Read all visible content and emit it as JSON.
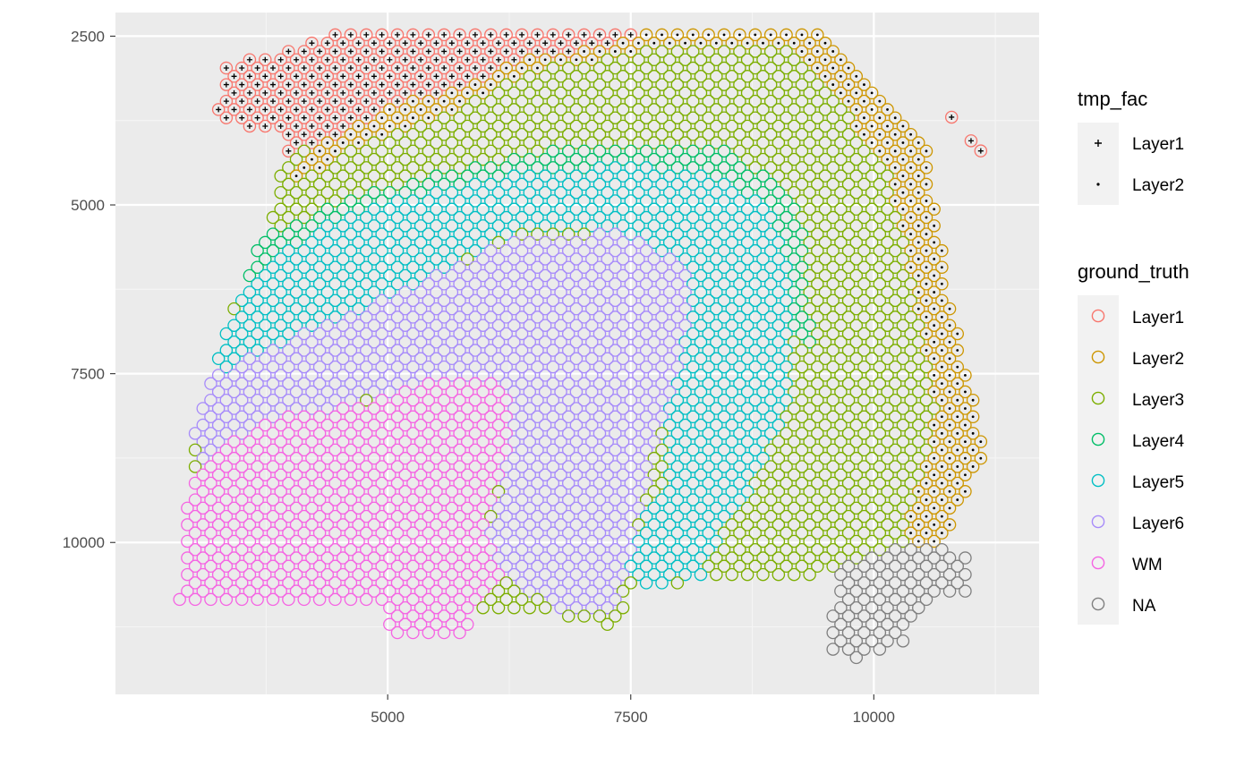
{
  "chart_data": {
    "type": "scatter",
    "title": "",
    "xlabel": "",
    "ylabel": "",
    "xlim": [
      2200,
      11700
    ],
    "ylim": [
      2150,
      12250
    ],
    "y_reversed": true,
    "grid": true,
    "legend_placement": "right",
    "x_ticks": [
      {
        "value": 5000,
        "label": "5000"
      },
      {
        "value": 7500,
        "label": "7500"
      },
      {
        "value": 10000,
        "label": "10000"
      }
    ],
    "y_ticks": [
      {
        "value": 2500,
        "label": "2500"
      },
      {
        "value": 5000,
        "label": "5000"
      },
      {
        "value": 7500,
        "label": "7500"
      },
      {
        "value": 10000,
        "label": "10000"
      }
    ],
    "spot_spacing_x": 160,
    "spot_spacing_y": 123,
    "shape_legend": {
      "title": "tmp_fac",
      "items": [
        {
          "name": "Layer1",
          "shape": "plus"
        },
        {
          "name": "Layer2",
          "shape": "dot"
        }
      ]
    },
    "color_legend": {
      "title": "ground_truth",
      "items": [
        {
          "name": "Layer1",
          "color": "#F8766D"
        },
        {
          "name": "Layer2",
          "color": "#CD9600"
        },
        {
          "name": "Layer3",
          "color": "#7CAE00"
        },
        {
          "name": "Layer4",
          "color": "#00BE67"
        },
        {
          "name": "Layer5",
          "color": "#00BFC4"
        },
        {
          "name": "Layer6",
          "color": "#A78BFA"
        },
        {
          "name": "WM",
          "color": "#F564E3"
        },
        {
          "name": "NA",
          "color": "#7F7F7F"
        }
      ]
    },
    "regions": {
      "tissue": [
        [
          2850,
          11000
        ],
        [
          2900,
          9800
        ],
        [
          3050,
          8000
        ],
        [
          3300,
          7000
        ],
        [
          3600,
          5800
        ],
        [
          3800,
          5100
        ],
        [
          3950,
          4000
        ],
        [
          3200,
          3700
        ],
        [
          3350,
          2900
        ],
        [
          4200,
          2600
        ],
        [
          4600,
          2350
        ],
        [
          9500,
          2350
        ],
        [
          10000,
          3200
        ],
        [
          10550,
          4200
        ],
        [
          10750,
          6100
        ],
        [
          10900,
          7100
        ],
        [
          11150,
          8700
        ],
        [
          10700,
          10100
        ],
        [
          10400,
          10250
        ],
        [
          9000,
          10600
        ],
        [
          8300,
          10550
        ],
        [
          7500,
          10700
        ],
        [
          7400,
          11250
        ],
        [
          6400,
          11000
        ],
        [
          5900,
          11000
        ],
        [
          5800,
          11350
        ],
        [
          5000,
          11350
        ],
        [
          4900,
          10900
        ],
        [
          2850,
          10900
        ]
      ],
      "layer1": [
        [
          3050,
          3600
        ],
        [
          3100,
          2900
        ],
        [
          4000,
          2450
        ],
        [
          4600,
          2350
        ],
        [
          7600,
          2380
        ],
        [
          7450,
          2580
        ],
        [
          6200,
          2900
        ],
        [
          5800,
          3300
        ],
        [
          5200,
          3450
        ],
        [
          4200,
          4150
        ],
        [
          3550,
          4500
        ],
        [
          3200,
          4400
        ]
      ],
      "layer2": [
        [
          3950,
          4500
        ],
        [
          4600,
          3500
        ],
        [
          5800,
          3300
        ],
        [
          6300,
          2800
        ],
        [
          7600,
          2380
        ],
        [
          9700,
          2380
        ],
        [
          10150,
          3200
        ],
        [
          10550,
          4100
        ],
        [
          10800,
          5400
        ],
        [
          11000,
          6900
        ],
        [
          11200,
          8200
        ],
        [
          11100,
          8900
        ],
        [
          10800,
          9700
        ],
        [
          10550,
          10300
        ],
        [
          10300,
          10050
        ],
        [
          10650,
          8000
        ],
        [
          10450,
          6700
        ],
        [
          10300,
          5500
        ],
        [
          10150,
          4500
        ],
        [
          9700,
          3600
        ],
        [
          9150,
          2700
        ],
        [
          7900,
          2650
        ],
        [
          6500,
          3000
        ],
        [
          5500,
          3700
        ],
        [
          4500,
          4200
        ],
        [
          4100,
          4700
        ]
      ],
      "layer4": [
        [
          3350,
          7350
        ],
        [
          3450,
          6500
        ],
        [
          3700,
          5500
        ],
        [
          4600,
          4900
        ],
        [
          5600,
          4500
        ],
        [
          6600,
          4200
        ],
        [
          7500,
          4200
        ],
        [
          8500,
          4200
        ],
        [
          9050,
          4700
        ],
        [
          9300,
          5300
        ],
        [
          9300,
          6300
        ],
        [
          9400,
          7200
        ],
        [
          9150,
          7000
        ],
        [
          8800,
          6500
        ],
        [
          8600,
          5600
        ],
        [
          7700,
          5000
        ],
        [
          6400,
          5000
        ],
        [
          4800,
          5500
        ],
        [
          4100,
          6100
        ],
        [
          3700,
          7000
        ]
      ],
      "layer5": [
        [
          3150,
          7900
        ],
        [
          3300,
          7000
        ],
        [
          3600,
          6100
        ],
        [
          4300,
          5300
        ],
        [
          5400,
          4800
        ],
        [
          6400,
          4500
        ],
        [
          7600,
          4400
        ],
        [
          8500,
          4600
        ],
        [
          9000,
          5200
        ],
        [
          9150,
          6200
        ],
        [
          9100,
          8000
        ],
        [
          8800,
          9000
        ],
        [
          8400,
          10000
        ],
        [
          8200,
          10550
        ],
        [
          7600,
          10650
        ],
        [
          7300,
          10400
        ],
        [
          7900,
          9000
        ],
        [
          7800,
          7800
        ],
        [
          8000,
          6800
        ],
        [
          7600,
          5500
        ],
        [
          6500,
          5300
        ],
        [
          5600,
          5900
        ],
        [
          5200,
          6600
        ],
        [
          4200,
          7300
        ],
        [
          3500,
          7700
        ]
      ],
      "layer6": [
        [
          2950,
          8400
        ],
        [
          3150,
          7600
        ],
        [
          3800,
          7100
        ],
        [
          5100,
          6300
        ],
        [
          6300,
          5500
        ],
        [
          7400,
          5400
        ],
        [
          8150,
          6000
        ],
        [
          8000,
          7500
        ],
        [
          7700,
          8900
        ],
        [
          7500,
          10200
        ],
        [
          7350,
          11000
        ],
        [
          6800,
          11000
        ],
        [
          6300,
          10600
        ],
        [
          6000,
          10000
        ],
        [
          6200,
          9000
        ],
        [
          6200,
          8000
        ],
        [
          5000,
          7800
        ],
        [
          3900,
          8200
        ],
        [
          3100,
          8800
        ]
      ],
      "wm": [
        [
          2850,
          11000
        ],
        [
          2900,
          9600
        ],
        [
          3050,
          8800
        ],
        [
          3700,
          8200
        ],
        [
          4600,
          8000
        ],
        [
          5500,
          7600
        ],
        [
          6200,
          7600
        ],
        [
          6300,
          8300
        ],
        [
          6100,
          9200
        ],
        [
          6000,
          9900
        ],
        [
          6200,
          10400
        ],
        [
          5900,
          11100
        ],
        [
          5800,
          11350
        ],
        [
          5000,
          11350
        ],
        [
          4800,
          10900
        ],
        [
          2850,
          10900
        ]
      ],
      "na": [
        [
          9550,
          11650
        ],
        [
          9600,
          10350
        ],
        [
          10100,
          10100
        ],
        [
          10600,
          10000
        ],
        [
          11000,
          10250
        ],
        [
          11000,
          10700
        ],
        [
          10500,
          10900
        ],
        [
          10300,
          11500
        ],
        [
          9800,
          11750
        ]
      ]
    },
    "outlier_spots": [
      {
        "x": 10800,
        "y": 3700,
        "color": "Layer1",
        "shape": "plus"
      },
      {
        "x": 11000,
        "y": 4050,
        "color": "Layer1",
        "shape": "plus"
      },
      {
        "x": 11100,
        "y": 4200,
        "color": "Layer1",
        "shape": "plus"
      }
    ]
  }
}
